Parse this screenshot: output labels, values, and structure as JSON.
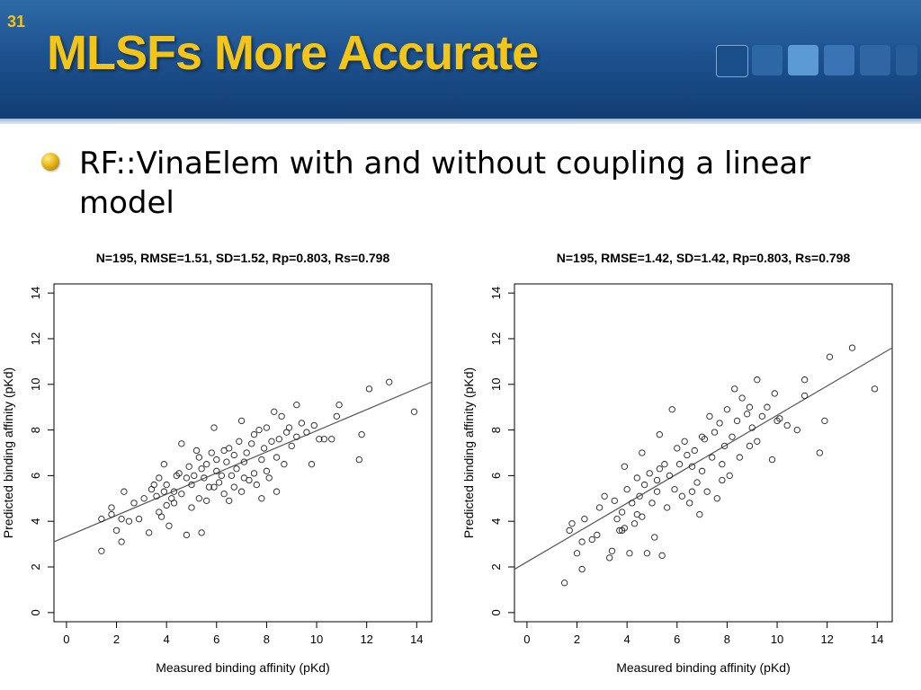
{
  "slide": {
    "number": "31",
    "title": "MLSFs More Accurate",
    "bullet": "RF::VinaElem with and without coupling a linear model"
  },
  "colors": {
    "header": "#1d5290",
    "title": "#f3c518",
    "accent_squares": [
      "#1a4e8a",
      "#2d67a6",
      "#3a74b4",
      "#5c9ad6",
      "#3b73b2",
      "#2f66a3",
      "#275d98"
    ]
  },
  "chart_data": [
    {
      "type": "scatter",
      "title": "N=195, RMSE=1.51, SD=1.52, Rp=0.803, Rs=0.798",
      "xlabel": "Measured binding affinity (pKd)",
      "ylabel": "Predicted binding affinity (pKd)",
      "xlim": [
        -0.5,
        14.6
      ],
      "ylim": [
        -0.4,
        14.4
      ],
      "xticks": [
        "0",
        "2",
        "4",
        "6",
        "8",
        "10",
        "12",
        "14"
      ],
      "yticks": [
        "0",
        "2",
        "4",
        "6",
        "8",
        "10",
        "12",
        "14"
      ],
      "xtick_values": [
        0,
        2,
        4,
        6,
        8,
        10,
        12,
        14
      ],
      "ytick_values": [
        0,
        2,
        4,
        6,
        8,
        10,
        12,
        14
      ],
      "grid": false,
      "fit_line": {
        "x": [
          -0.5,
          14.6
        ],
        "y": [
          3.1,
          10.1
        ]
      },
      "points": [
        [
          1.4,
          2.7
        ],
        [
          1.4,
          4.1
        ],
        [
          1.8,
          4.3
        ],
        [
          1.8,
          4.6
        ],
        [
          2.0,
          3.6
        ],
        [
          2.2,
          3.1
        ],
        [
          2.2,
          4.1
        ],
        [
          2.3,
          5.3
        ],
        [
          2.5,
          4.0
        ],
        [
          2.7,
          4.8
        ],
        [
          2.9,
          4.1
        ],
        [
          3.1,
          5.0
        ],
        [
          3.3,
          3.5
        ],
        [
          3.4,
          5.4
        ],
        [
          3.6,
          5.1
        ],
        [
          3.7,
          5.9
        ],
        [
          3.7,
          4.4
        ],
        [
          3.8,
          4.2
        ],
        [
          3.9,
          5.3
        ],
        [
          3.9,
          6.5
        ],
        [
          4.0,
          5.6
        ],
        [
          4.1,
          3.8
        ],
        [
          4.2,
          5.0
        ],
        [
          4.3,
          5.3
        ],
        [
          4.3,
          4.8
        ],
        [
          4.4,
          6.0
        ],
        [
          4.5,
          6.1
        ],
        [
          4.6,
          7.4
        ],
        [
          4.6,
          5.2
        ],
        [
          4.8,
          3.4
        ],
        [
          4.8,
          5.9
        ],
        [
          4.9,
          6.4
        ],
        [
          5.0,
          5.6
        ],
        [
          5.0,
          4.6
        ],
        [
          5.1,
          6.0
        ],
        [
          5.2,
          7.1
        ],
        [
          5.3,
          5.0
        ],
        [
          5.4,
          3.5
        ],
        [
          5.4,
          6.3
        ],
        [
          5.5,
          5.9
        ],
        [
          5.6,
          4.9
        ],
        [
          5.6,
          6.5
        ],
        [
          5.7,
          5.5
        ],
        [
          5.8,
          7.0
        ],
        [
          5.9,
          8.1
        ],
        [
          5.9,
          5.5
        ],
        [
          6.0,
          6.2
        ],
        [
          6.0,
          6.7
        ],
        [
          6.1,
          5.7
        ],
        [
          6.2,
          6.0
        ],
        [
          6.3,
          7.1
        ],
        [
          6.3,
          5.2
        ],
        [
          6.4,
          6.6
        ],
        [
          6.5,
          7.2
        ],
        [
          6.5,
          4.9
        ],
        [
          6.6,
          6.0
        ],
        [
          6.7,
          6.9
        ],
        [
          6.8,
          6.3
        ],
        [
          6.9,
          7.5
        ],
        [
          7.0,
          5.3
        ],
        [
          7.0,
          8.4
        ],
        [
          7.1,
          6.6
        ],
        [
          7.2,
          7.0
        ],
        [
          7.3,
          5.8
        ],
        [
          7.4,
          7.4
        ],
        [
          7.5,
          6.1
        ],
        [
          7.5,
          7.8
        ],
        [
          7.6,
          5.6
        ],
        [
          7.7,
          8.0
        ],
        [
          7.8,
          6.7
        ],
        [
          7.9,
          7.2
        ],
        [
          8.0,
          6.2
        ],
        [
          8.0,
          8.1
        ],
        [
          8.1,
          5.9
        ],
        [
          8.2,
          7.5
        ],
        [
          8.3,
          8.8
        ],
        [
          8.4,
          6.8
        ],
        [
          8.5,
          7.6
        ],
        [
          8.6,
          8.6
        ],
        [
          8.7,
          6.5
        ],
        [
          8.8,
          7.9
        ],
        [
          8.9,
          8.1
        ],
        [
          9.0,
          7.3
        ],
        [
          9.2,
          9.1
        ],
        [
          9.2,
          7.7
        ],
        [
          9.4,
          8.3
        ],
        [
          9.6,
          7.9
        ],
        [
          9.8,
          6.5
        ],
        [
          9.9,
          8.2
        ],
        [
          10.1,
          7.6
        ],
        [
          10.3,
          7.6
        ],
        [
          10.6,
          7.6
        ],
        [
          10.8,
          8.6
        ],
        [
          10.9,
          9.1
        ],
        [
          11.7,
          6.7
        ],
        [
          11.8,
          7.8
        ],
        [
          12.1,
          9.8
        ],
        [
          12.9,
          10.1
        ],
        [
          13.9,
          8.8
        ],
        [
          7.8,
          5.0
        ],
        [
          6.7,
          5.5
        ],
        [
          5.3,
          6.8
        ],
        [
          4.0,
          4.7
        ],
        [
          3.5,
          5.6
        ],
        [
          7.1,
          5.9
        ],
        [
          8.4,
          5.3
        ]
      ]
    },
    {
      "type": "scatter",
      "title": "N=195, RMSE=1.42, SD=1.42, Rp=0.803, Rs=0.798",
      "xlabel": "Measured binding affinity (pKd)",
      "ylabel": "Predicted binding affinity (pKd)",
      "xlim": [
        -0.5,
        14.6
      ],
      "ylim": [
        -0.4,
        14.4
      ],
      "xticks": [
        "0",
        "2",
        "4",
        "6",
        "8",
        "10",
        "12",
        "14"
      ],
      "yticks": [
        "0",
        "2",
        "4",
        "6",
        "8",
        "10",
        "12",
        "14"
      ],
      "xtick_values": [
        0,
        2,
        4,
        6,
        8,
        10,
        12,
        14
      ],
      "ytick_values": [
        0,
        2,
        4,
        6,
        8,
        10,
        12,
        14
      ],
      "grid": false,
      "fit_line": {
        "x": [
          -0.5,
          14.6
        ],
        "y": [
          1.9,
          11.6
        ]
      },
      "points": [
        [
          1.5,
          1.3
        ],
        [
          1.7,
          3.6
        ],
        [
          1.8,
          3.9
        ],
        [
          2.0,
          2.6
        ],
        [
          2.2,
          1.9
        ],
        [
          2.2,
          3.1
        ],
        [
          2.3,
          4.1
        ],
        [
          2.6,
          3.2
        ],
        [
          2.8,
          3.4
        ],
        [
          2.9,
          4.6
        ],
        [
          3.1,
          5.1
        ],
        [
          3.3,
          2.4
        ],
        [
          3.4,
          2.7
        ],
        [
          3.5,
          4.9
        ],
        [
          3.6,
          4.1
        ],
        [
          3.7,
          3.6
        ],
        [
          3.8,
          4.4
        ],
        [
          3.9,
          6.4
        ],
        [
          3.9,
          3.7
        ],
        [
          4.0,
          5.4
        ],
        [
          4.1,
          2.6
        ],
        [
          4.2,
          4.8
        ],
        [
          4.3,
          3.9
        ],
        [
          4.4,
          5.9
        ],
        [
          4.5,
          5.1
        ],
        [
          4.6,
          7.0
        ],
        [
          4.6,
          4.2
        ],
        [
          4.7,
          5.6
        ],
        [
          4.8,
          2.6
        ],
        [
          4.9,
          6.1
        ],
        [
          5.0,
          4.8
        ],
        [
          5.1,
          3.3
        ],
        [
          5.2,
          5.8
        ],
        [
          5.3,
          6.3
        ],
        [
          5.3,
          7.8
        ],
        [
          5.4,
          2.5
        ],
        [
          5.5,
          6.5
        ],
        [
          5.6,
          4.6
        ],
        [
          5.7,
          6.0
        ],
        [
          5.8,
          8.9
        ],
        [
          5.9,
          5.4
        ],
        [
          6.0,
          7.2
        ],
        [
          6.1,
          6.5
        ],
        [
          6.2,
          5.1
        ],
        [
          6.3,
          7.5
        ],
        [
          6.4,
          6.9
        ],
        [
          6.5,
          4.8
        ],
        [
          6.6,
          6.4
        ],
        [
          6.7,
          7.1
        ],
        [
          6.8,
          5.7
        ],
        [
          6.9,
          4.3
        ],
        [
          7.0,
          6.2
        ],
        [
          7.1,
          7.6
        ],
        [
          7.2,
          5.3
        ],
        [
          7.3,
          8.6
        ],
        [
          7.4,
          6.8
        ],
        [
          7.5,
          7.9
        ],
        [
          7.6,
          5.0
        ],
        [
          7.7,
          8.3
        ],
        [
          7.8,
          6.5
        ],
        [
          7.9,
          7.3
        ],
        [
          8.0,
          8.9
        ],
        [
          8.1,
          6.0
        ],
        [
          8.2,
          7.7
        ],
        [
          8.3,
          9.8
        ],
        [
          8.4,
          8.4
        ],
        [
          8.5,
          6.8
        ],
        [
          8.6,
          9.4
        ],
        [
          8.8,
          8.7
        ],
        [
          8.9,
          7.3
        ],
        [
          9.0,
          8.1
        ],
        [
          9.2,
          10.2
        ],
        [
          9.2,
          7.5
        ],
        [
          9.4,
          8.6
        ],
        [
          9.6,
          9.0
        ],
        [
          9.8,
          6.7
        ],
        [
          9.9,
          9.6
        ],
        [
          10.1,
          8.5
        ],
        [
          10.4,
          8.2
        ],
        [
          10.8,
          8.0
        ],
        [
          11.1,
          10.2
        ],
        [
          11.1,
          9.5
        ],
        [
          11.7,
          7.0
        ],
        [
          11.9,
          8.4
        ],
        [
          12.1,
          11.2
        ],
        [
          13.0,
          11.6
        ],
        [
          13.9,
          9.8
        ],
        [
          6.6,
          5.3
        ],
        [
          5.2,
          5.3
        ],
        [
          7.8,
          5.8
        ],
        [
          4.4,
          4.3
        ],
        [
          8.9,
          9.0
        ],
        [
          10.0,
          8.4
        ],
        [
          7.0,
          7.7
        ],
        [
          3.8,
          3.6
        ]
      ]
    }
  ]
}
